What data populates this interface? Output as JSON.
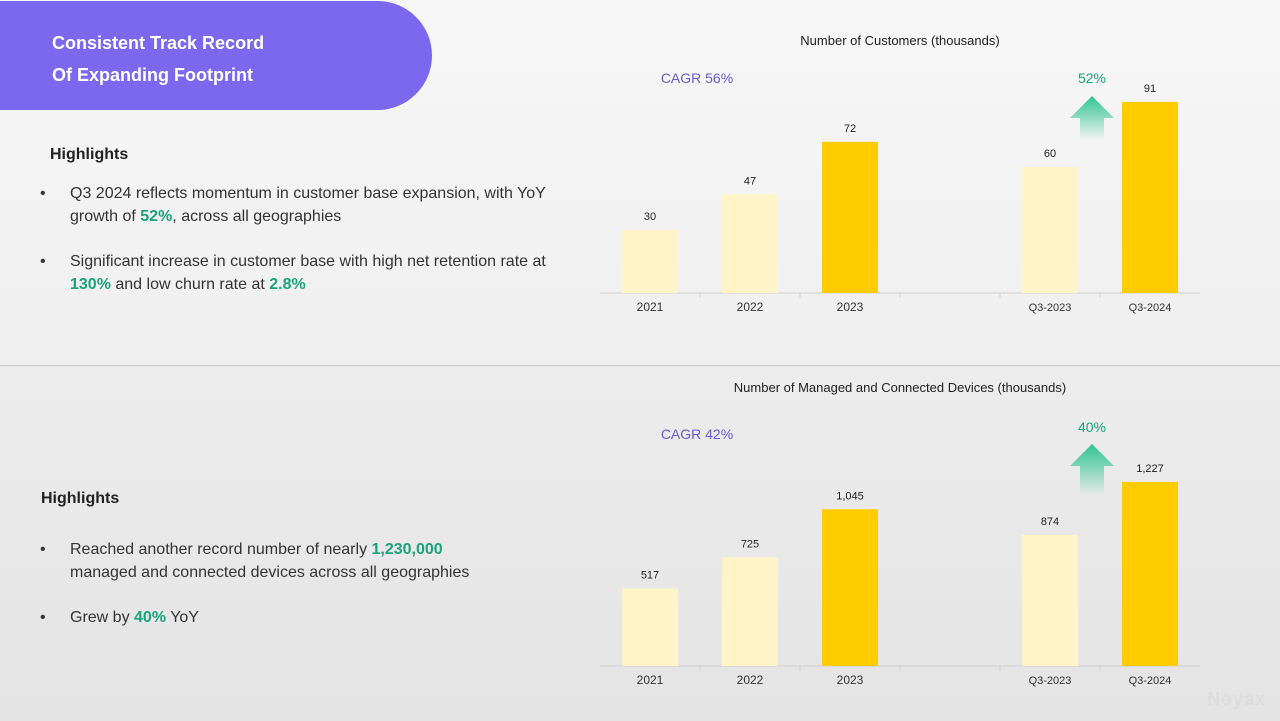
{
  "header": {
    "title_line1": "Consistent Track Record",
    "title_line2": "Of Expanding Footprint"
  },
  "top": {
    "highlights_title": "Highlights",
    "bullets": [
      {
        "parts": [
          {
            "t": "Q3 2024 reflects momentum in customer base expansion, with YoY growth of ",
            "hl": false
          },
          {
            "t": "52%",
            "hl": true
          },
          {
            "t": ", across all geographies",
            "hl": false
          }
        ]
      },
      {
        "parts": [
          {
            "t": "Significant increase in customer base with high net retention rate at ",
            "hl": false
          },
          {
            "t": "130%",
            "hl": true
          },
          {
            "t": " and low churn rate at ",
            "hl": false
          },
          {
            "t": "2.8%",
            "hl": true
          }
        ]
      }
    ]
  },
  "bottom": {
    "highlights_title": "Highlights",
    "bullets": [
      {
        "parts": [
          {
            "t": "Reached another record number of nearly ",
            "hl": false
          },
          {
            "t": "1,230,000",
            "hl": true
          },
          {
            "t": " managed and connected devices across all geographies",
            "hl": false
          }
        ]
      },
      {
        "parts": [
          {
            "t": "Grew by ",
            "hl": false
          },
          {
            "t": "40%",
            "hl": true
          },
          {
            "t": " YoY",
            "hl": false
          }
        ]
      }
    ]
  },
  "colors": {
    "accent": "#7b68ee",
    "bar_light": "#fff3c8",
    "bar_dark": "#ffcc00",
    "growth_green": "#1aa37a",
    "arrow_green": "#2ec492",
    "cagr_purple": "#6a5acd"
  },
  "chart_data": [
    {
      "type": "bar",
      "title": "Number of Customers (thousands)",
      "categories": [
        "2021",
        "2022",
        "2023",
        "Q3-2023",
        "Q3-2024"
      ],
      "values": [
        30,
        47,
        72,
        60,
        91
      ],
      "value_labels": [
        "30",
        "47",
        "72",
        "60",
        "91"
      ],
      "highlight": [
        false,
        false,
        true,
        false,
        true
      ],
      "ylim": [
        0,
        100
      ],
      "grid": false,
      "annotations": {
        "cagr": "CAGR 56%",
        "growth": "52%",
        "growth_icon": "arrow-up-icon"
      }
    },
    {
      "type": "bar",
      "title": "Number of Managed and Connected Devices (thousands)",
      "categories": [
        "2021",
        "2022",
        "2023",
        "Q3-2023",
        "Q3-2024"
      ],
      "values": [
        517,
        725,
        1045,
        874,
        1227
      ],
      "value_labels": [
        "517",
        "725",
        "1,045",
        "874",
        "1,227"
      ],
      "highlight": [
        false,
        false,
        true,
        false,
        true
      ],
      "ylim": [
        0,
        1400
      ],
      "grid": false,
      "annotations": {
        "cagr": "CAGR 42%",
        "growth": "40%",
        "growth_icon": "arrow-up-icon"
      }
    }
  ],
  "watermark": "Noyax"
}
